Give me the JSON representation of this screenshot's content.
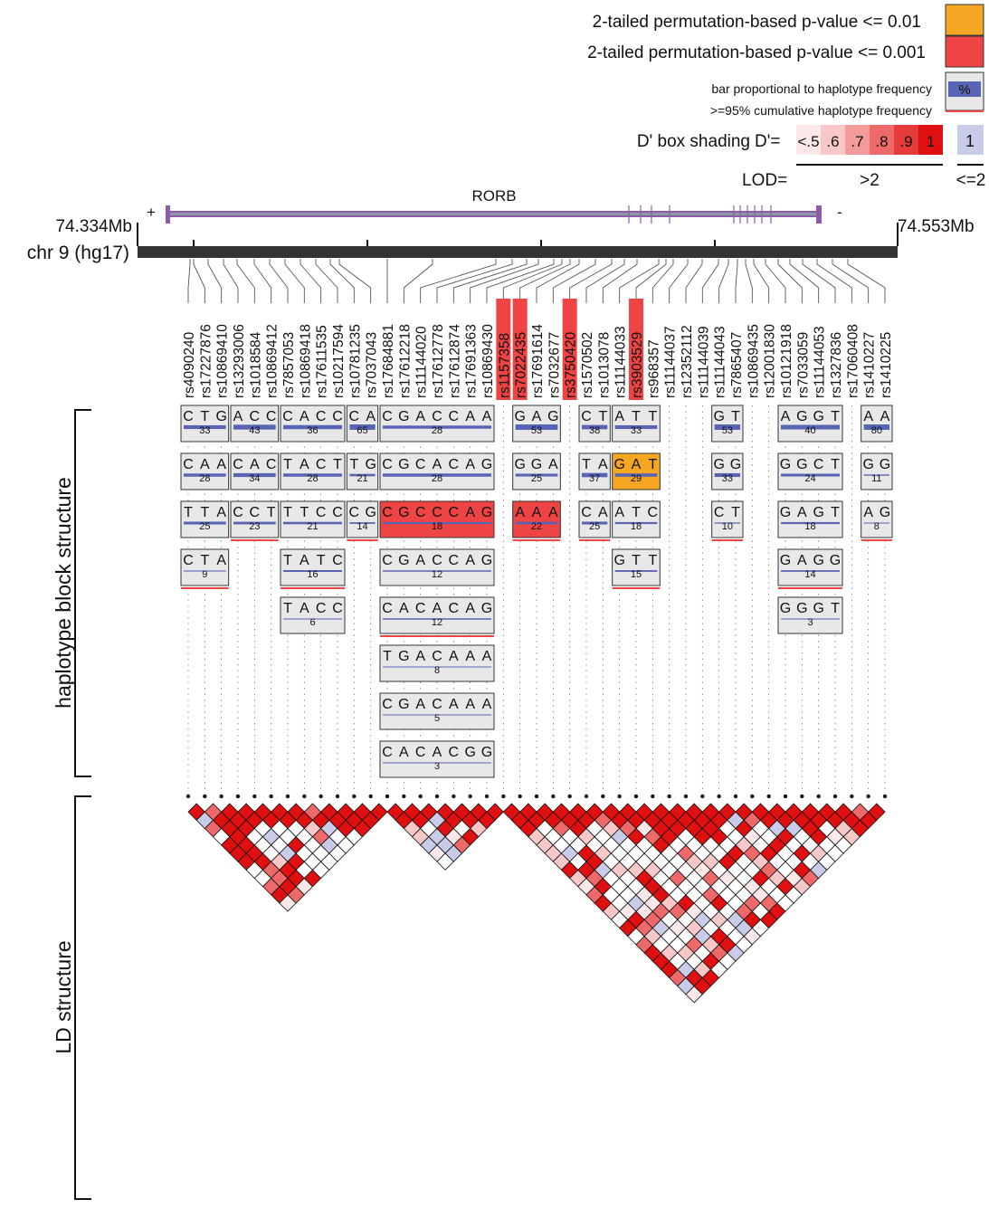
{
  "legend": {
    "p01": "2-tailed permutation-based p-value <= 0.01",
    "p001": "2-tailed permutation-based p-value <= 0.001",
    "bar": "bar proportional to haplotype frequency",
    "pct": "%",
    "cum": ">=95% cumulative haplotype frequency",
    "shading": "D' box shading",
    "dprime": "D'=",
    "shades": [
      ".5",
      ".6",
      ".7",
      ".8",
      ".9",
      "1"
    ],
    "shade_lt": "<",
    "one": "1",
    "lod": "LOD=",
    "gt2": ">2",
    "le2": "<=2",
    "colors": {
      "orange": "#F5A623",
      "red": "#EE4444",
      "blue": "#5A64B4",
      "lavender": "#C8CCE8"
    }
  },
  "gene": {
    "name": "RORB",
    "plus": "+",
    "minus": "-"
  },
  "chrom": {
    "label": "chr 9 (hg17)",
    "start": "74.334Mb",
    "end": "74.553Mb"
  },
  "snps": [
    {
      "id": "rs4090240"
    },
    {
      "id": "rs17227876"
    },
    {
      "id": "rs10869410"
    },
    {
      "id": "rs13293006"
    },
    {
      "id": "rs1018584"
    },
    {
      "id": "rs10869412"
    },
    {
      "id": "rs7857053"
    },
    {
      "id": "rs10869418"
    },
    {
      "id": "rs17611535"
    },
    {
      "id": "rs10217594"
    },
    {
      "id": "rs10781235"
    },
    {
      "id": "rs7037043"
    },
    {
      "id": "rs17684881"
    },
    {
      "id": "rs17612218"
    },
    {
      "id": "rs11144020"
    },
    {
      "id": "rs17612778"
    },
    {
      "id": "rs17612874"
    },
    {
      "id": "rs17691363"
    },
    {
      "id": "rs10869430"
    },
    {
      "id": "rs1157358",
      "hl": "red"
    },
    {
      "id": "rs7022435",
      "hl": "red"
    },
    {
      "id": "rs17691614"
    },
    {
      "id": "rs7032677"
    },
    {
      "id": "rs3750420",
      "hl": "red"
    },
    {
      "id": "rs1570502"
    },
    {
      "id": "rs1013078"
    },
    {
      "id": "rs11144033"
    },
    {
      "id": "rs3903529",
      "hl": "red"
    },
    {
      "id": "rs968357"
    },
    {
      "id": "rs11144037"
    },
    {
      "id": "rs12352112"
    },
    {
      "id": "rs11144039"
    },
    {
      "id": "rs11144043"
    },
    {
      "id": "rs7865407"
    },
    {
      "id": "rs10869435"
    },
    {
      "id": "rs12001830"
    },
    {
      "id": "rs10121918"
    },
    {
      "id": "rs7033059"
    },
    {
      "id": "rs11144053"
    },
    {
      "id": "rs1327836"
    },
    {
      "id": "rs17060408"
    },
    {
      "id": "rs1410227"
    },
    {
      "id": "rs1410225"
    }
  ],
  "blocks": [
    {
      "snps": [
        0,
        1,
        2
      ],
      "haps": [
        {
          "alleles": [
            "C",
            "T",
            "G"
          ],
          "freq": "33"
        },
        {
          "alleles": [
            "C",
            "A",
            "A"
          ],
          "freq": "28"
        },
        {
          "alleles": [
            "T",
            "T",
            "A"
          ],
          "freq": "25"
        },
        {
          "alleles": [
            "C",
            "T",
            "A"
          ],
          "freq": "9"
        }
      ]
    },
    {
      "snps": [
        3,
        4,
        5
      ],
      "haps": [
        {
          "alleles": [
            "A",
            "C",
            "C"
          ],
          "freq": "43"
        },
        {
          "alleles": [
            "C",
            "A",
            "C"
          ],
          "freq": "34"
        },
        {
          "alleles": [
            "C",
            "C",
            "T"
          ],
          "freq": "23"
        }
      ]
    },
    {
      "snps": [
        6,
        7,
        8,
        9
      ],
      "haps": [
        {
          "alleles": [
            "C",
            "A",
            "C",
            "C"
          ],
          "freq": "36"
        },
        {
          "alleles": [
            "T",
            "A",
            "C",
            "T"
          ],
          "freq": "28"
        },
        {
          "alleles": [
            "T",
            "T",
            "C",
            "C"
          ],
          "freq": "21"
        },
        {
          "alleles": [
            "T",
            "A",
            "T",
            "C"
          ],
          "freq": "16"
        },
        {
          "alleles": [
            "T",
            "A",
            "C",
            "C"
          ],
          "freq": "6"
        }
      ]
    },
    {
      "snps": [
        10,
        11
      ],
      "haps": [
        {
          "alleles": [
            "C",
            "A"
          ],
          "freq": "65"
        },
        {
          "alleles": [
            "T",
            "G"
          ],
          "freq": "21"
        },
        {
          "alleles": [
            "C",
            "G"
          ],
          "freq": "14"
        }
      ]
    },
    {
      "snps": [
        12,
        13,
        14,
        15,
        16,
        17,
        18
      ],
      "haps": [
        {
          "alleles": [
            "C",
            "G",
            "A",
            "C",
            "C",
            "A",
            "A"
          ],
          "freq": "28"
        },
        {
          "alleles": [
            "C",
            "G",
            "C",
            "A",
            "C",
            "A",
            "G"
          ],
          "freq": "28"
        },
        {
          "alleles": [
            "C",
            "G",
            "C",
            "C",
            "C",
            "A",
            "G"
          ],
          "freq": "18",
          "hl": "red"
        },
        {
          "alleles": [
            "C",
            "G",
            "A",
            "C",
            "C",
            "A",
            "G"
          ],
          "freq": "12"
        },
        {
          "alleles": [
            "C",
            "A",
            "C",
            "A",
            "C",
            "A",
            "G"
          ],
          "freq": "12"
        },
        {
          "alleles": [
            "T",
            "G",
            "A",
            "C",
            "A",
            "A",
            "A"
          ],
          "freq": "8"
        },
        {
          "alleles": [
            "C",
            "G",
            "A",
            "C",
            "A",
            "A",
            "A"
          ],
          "freq": "5"
        },
        {
          "alleles": [
            "C",
            "A",
            "C",
            "A",
            "C",
            "G",
            "G"
          ],
          "freq": "3"
        }
      ]
    },
    {
      "snps": [
        20,
        21,
        22
      ],
      "haps": [
        {
          "alleles": [
            "G",
            "A",
            "G"
          ],
          "freq": "53"
        },
        {
          "alleles": [
            "G",
            "G",
            "A"
          ],
          "freq": "25"
        },
        {
          "alleles": [
            "A",
            "A",
            "A"
          ],
          "freq": "22",
          "hl": "red"
        }
      ]
    },
    {
      "snps": [
        24,
        25
      ],
      "haps": [
        {
          "alleles": [
            "C",
            "T"
          ],
          "freq": "38"
        },
        {
          "alleles": [
            "T",
            "A"
          ],
          "freq": "37"
        },
        {
          "alleles": [
            "C",
            "A"
          ],
          "freq": "25"
        }
      ]
    },
    {
      "snps": [
        26,
        27,
        28
      ],
      "haps": [
        {
          "alleles": [
            "A",
            "T",
            "T"
          ],
          "freq": "33"
        },
        {
          "alleles": [
            "G",
            "A",
            "T"
          ],
          "freq": "29",
          "hl": "orange"
        },
        {
          "alleles": [
            "A",
            "T",
            "C"
          ],
          "freq": "18"
        },
        {
          "alleles": [
            "G",
            "T",
            "T"
          ],
          "freq": "15"
        }
      ]
    },
    {
      "snps": [
        32,
        33
      ],
      "haps": [
        {
          "alleles": [
            "G",
            "T"
          ],
          "freq": "53"
        },
        {
          "alleles": [
            "G",
            "G"
          ],
          "freq": "33"
        },
        {
          "alleles": [
            "C",
            "T"
          ],
          "freq": "10"
        }
      ]
    },
    {
      "snps": [
        36,
        37,
        38,
        39
      ],
      "haps": [
        {
          "alleles": [
            "A",
            "G",
            "G",
            "T"
          ],
          "freq": "40"
        },
        {
          "alleles": [
            "G",
            "G",
            "C",
            "T"
          ],
          "freq": "24"
        },
        {
          "alleles": [
            "G",
            "A",
            "G",
            "T"
          ],
          "freq": "18"
        },
        {
          "alleles": [
            "G",
            "A",
            "G",
            "G"
          ],
          "freq": "14"
        },
        {
          "alleles": [
            "G",
            "G",
            "G",
            "T"
          ],
          "freq": "3"
        }
      ]
    },
    {
      "snps": [
        41,
        42
      ],
      "haps": [
        {
          "alleles": [
            "A",
            "A"
          ],
          "freq": "80"
        },
        {
          "alleles": [
            "G",
            "G"
          ],
          "freq": "11"
        },
        {
          "alleles": [
            "A",
            "G"
          ],
          "freq": "8"
        }
      ]
    }
  ],
  "side_labels": {
    "hap": "haplotype block structure",
    "ld": "LD structure"
  }
}
